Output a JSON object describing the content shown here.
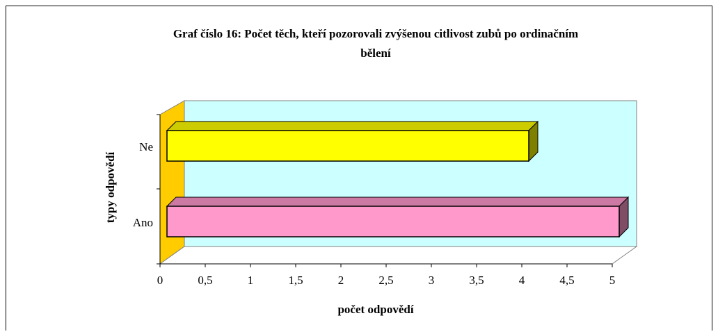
{
  "chart_data": {
    "type": "bar",
    "orientation": "horizontal",
    "title": "Graf číslo 16: Počet těch, kteří pozorovali zvýšenou citlivost zubů po ordinačním bělení",
    "xlabel": "počet odpovědí",
    "ylabel": "typy odpovědí",
    "categories": [
      "Ne",
      "Ano"
    ],
    "values": [
      4,
      5
    ],
    "colors": [
      "#ffff00",
      "#ff99cc"
    ],
    "xlim": [
      0,
      5
    ],
    "xticks": [
      0,
      {
        "value": 0.5,
        "label": "0,5"
      },
      1,
      {
        "value": 1.5,
        "label": "1,5"
      },
      2,
      {
        "value": 2.5,
        "label": "2,5"
      },
      3,
      {
        "value": 3.5,
        "label": "3,5"
      },
      4,
      {
        "value": 4.5,
        "label": "4,5"
      },
      5
    ],
    "grid": false
  }
}
